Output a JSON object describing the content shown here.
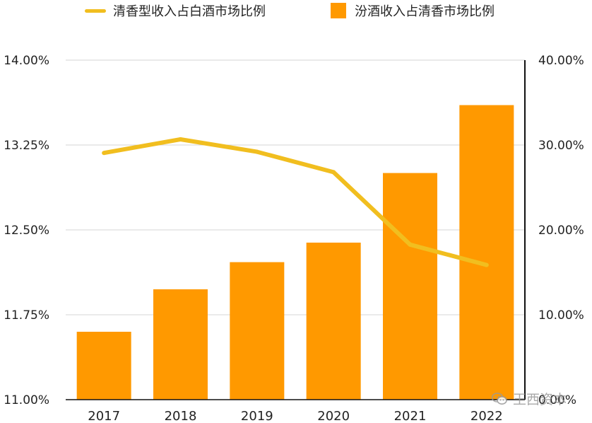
{
  "legend": {
    "line_label": "清香型收入占白酒市场比例",
    "bar_label": "汾酒收入占清香市场比例"
  },
  "watermark": {
    "text": "王西资本"
  },
  "colors": {
    "bar": "#FF9900",
    "line": "#F1BE1F",
    "grid": "#d4d4d4",
    "axis": "#111111",
    "text": "#222222"
  },
  "chart_data": {
    "type": "bar+line",
    "categories": [
      "2017",
      "2018",
      "2019",
      "2020",
      "2021",
      "2022"
    ],
    "series": [
      {
        "name": "汾酒收入占清香市场比例",
        "type": "bar",
        "axis": "right",
        "values": [
          8.0,
          13.0,
          16.2,
          18.5,
          26.7,
          34.7
        ]
      },
      {
        "name": "清香型收入占白酒市场比例",
        "type": "line",
        "axis": "left",
        "values": [
          13.18,
          13.3,
          13.19,
          13.01,
          12.37,
          12.19
        ]
      }
    ],
    "y_left": {
      "ylim": [
        11.0,
        14.0
      ],
      "ticks": [
        11.0,
        11.75,
        12.5,
        13.25,
        14.0
      ],
      "tick_labels": [
        "11.00%",
        "11.75%",
        "12.50%",
        "13.25%",
        "14.00%"
      ]
    },
    "y_right": {
      "ylim": [
        0,
        40
      ],
      "ticks": [
        0,
        10,
        20,
        30,
        40
      ],
      "tick_labels": [
        "0.00%",
        "10.00%",
        "20.00%",
        "30.00%",
        "40.00%"
      ]
    },
    "grid": true,
    "legend_position": "top"
  }
}
